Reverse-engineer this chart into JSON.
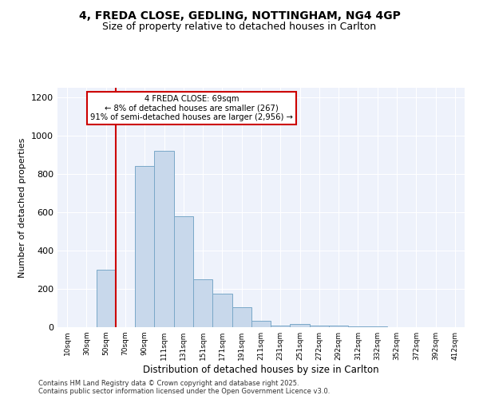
{
  "title1": "4, FREDA CLOSE, GEDLING, NOTTINGHAM, NG4 4GP",
  "title2": "Size of property relative to detached houses in Carlton",
  "xlabel": "Distribution of detached houses by size in Carlton",
  "ylabel": "Number of detached properties",
  "footer1": "Contains HM Land Registry data © Crown copyright and database right 2025.",
  "footer2": "Contains public sector information licensed under the Open Government Licence v3.0.",
  "annotation_line1": "4 FREDA CLOSE: 69sqm",
  "annotation_line2": "← 8% of detached houses are smaller (267)",
  "annotation_line3": "91% of semi-detached houses are larger (2,956) →",
  "bar_color": "#c8d8eb",
  "bar_edge_color": "#7aa8c8",
  "red_line_color": "#cc0000",
  "background_color": "#eef2fb",
  "categories": [
    "10sqm",
    "30sqm",
    "50sqm",
    "70sqm",
    "90sqm",
    "111sqm",
    "131sqm",
    "151sqm",
    "171sqm",
    "191sqm",
    "211sqm",
    "231sqm",
    "251sqm",
    "272sqm",
    "292sqm",
    "312sqm",
    "332sqm",
    "352sqm",
    "372sqm",
    "392sqm",
    "412sqm"
  ],
  "values": [
    0,
    0,
    300,
    0,
    840,
    920,
    580,
    250,
    175,
    105,
    35,
    10,
    15,
    10,
    8,
    5,
    3,
    0,
    0,
    0,
    0
  ],
  "ylim": [
    0,
    1250
  ],
  "yticks": [
    0,
    200,
    400,
    600,
    800,
    1000,
    1200
  ],
  "red_line_index": 2.5
}
